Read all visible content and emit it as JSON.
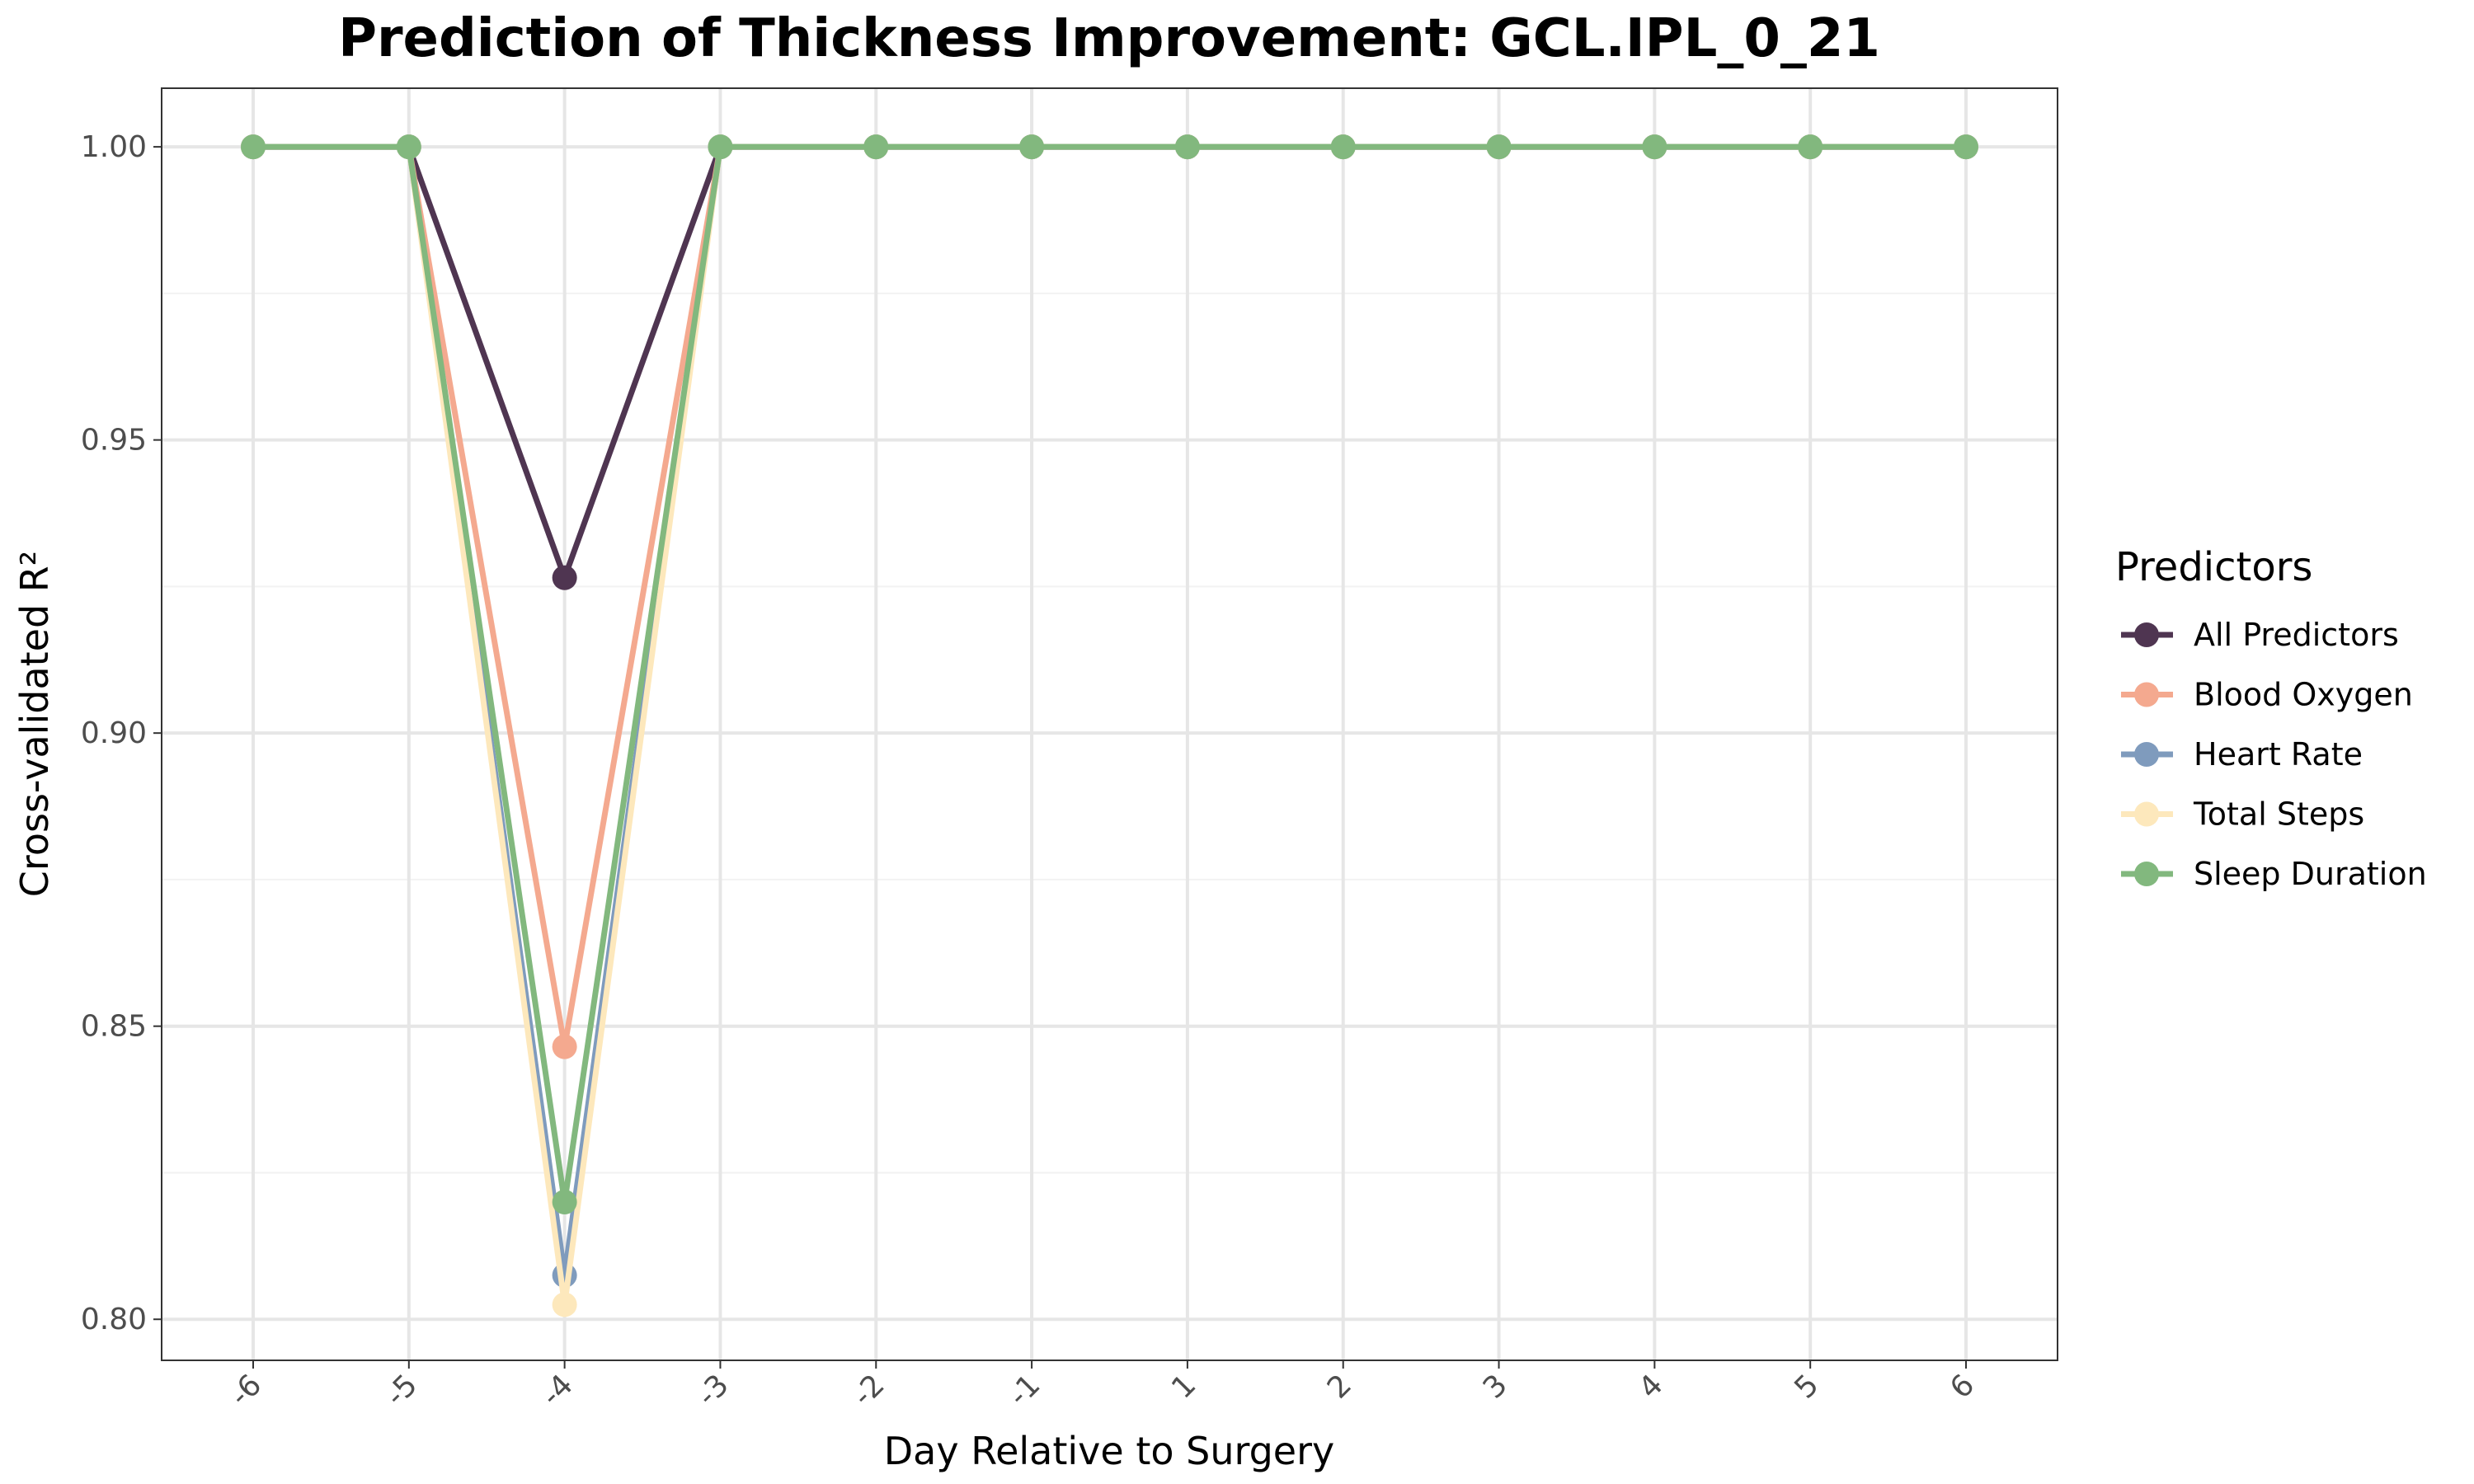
{
  "chart_data": {
    "type": "line",
    "title": "Prediction of Thickness Improvement: GCL.IPL_0_21",
    "xlabel": "Day Relative to Surgery",
    "ylabel": "Cross-validated R²",
    "categories": [
      "-6",
      "-5",
      "-4",
      "-3",
      "-2",
      "-1",
      "1",
      "2",
      "3",
      "4",
      "5",
      "6"
    ],
    "ylim": [
      0.793,
      1.01
    ],
    "yticks": [
      0.8,
      0.85,
      0.9,
      0.95,
      1.0
    ],
    "ytick_labels": [
      "0.80",
      "0.85",
      "0.90",
      "0.95",
      "1.00"
    ],
    "grid": true,
    "legend": {
      "title": "Predictors",
      "position": "right"
    },
    "series": [
      {
        "name": "All Predictors",
        "color": "#4f3551",
        "values": [
          1.0,
          1.0,
          0.9265,
          1.0,
          1.0,
          1.0,
          1.0,
          1.0,
          1.0,
          1.0,
          1.0,
          1.0
        ]
      },
      {
        "name": "Blood Oxygen",
        "color": "#f4a98f",
        "values": [
          1.0,
          1.0,
          0.8465,
          1.0,
          1.0,
          1.0,
          1.0,
          1.0,
          1.0,
          1.0,
          1.0,
          1.0
        ]
      },
      {
        "name": "Heart Rate",
        "color": "#7f9bbd",
        "values": [
          1.0,
          1.0,
          0.8075,
          1.0,
          1.0,
          1.0,
          1.0,
          1.0,
          1.0,
          1.0,
          1.0,
          1.0
        ]
      },
      {
        "name": "Total Steps",
        "color": "#fde8bc",
        "values": [
          1.0,
          1.0,
          0.8025,
          1.0,
          1.0,
          1.0,
          1.0,
          1.0,
          1.0,
          1.0,
          1.0,
          1.0
        ]
      },
      {
        "name": "Sleep Duration",
        "color": "#82b87e",
        "values": [
          1.0,
          1.0,
          0.82,
          1.0,
          1.0,
          1.0,
          1.0,
          1.0,
          1.0,
          1.0,
          1.0,
          1.0
        ]
      }
    ]
  }
}
